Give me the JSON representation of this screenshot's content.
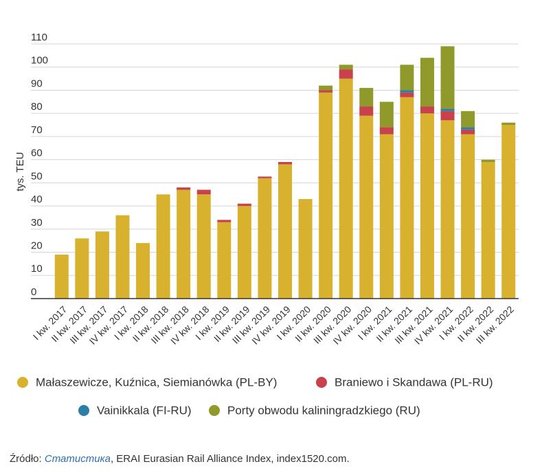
{
  "chart_data": {
    "type": "stacked_bar",
    "y_label": "tys. TEU",
    "categories": [
      "I kw. 2017",
      "II kw. 2017",
      "III kw. 2017",
      "IV kw. 2017",
      "I kw. 2018",
      "II kw. 2018",
      "III kw. 2018",
      "IV kw. 2018",
      "I kw. 2019",
      "II kw. 2019",
      "III kw. 2019",
      "IV kw. 2019",
      "I kw. 2020",
      "II kw. 2020",
      "III kw. 2020",
      "IV kw. 2020",
      "I kw. 2021",
      "II kw. 2021",
      "III kw. 2021",
      "IV kw. 2021",
      "I kw. 2022",
      "II kw. 2022",
      "III kw. 2022"
    ],
    "series": [
      {
        "name": "Małaszewicze, Kuźnica, Siemianówka (PL-BY)",
        "color": "#d8b22f",
        "values": [
          19,
          26,
          29,
          36,
          24,
          45,
          47,
          45,
          33,
          40,
          52,
          58,
          43,
          89,
          95,
          79,
          71,
          87,
          80,
          77,
          71,
          59,
          75
        ]
      },
      {
        "name": "Braniewo i Skandawa (PL-RU)",
        "color": "#c8414b",
        "values": [
          0,
          0,
          0,
          0,
          0,
          0,
          1,
          2,
          1,
          1,
          0.7,
          1,
          0,
          1,
          4,
          4,
          3,
          2,
          3,
          4,
          2,
          0,
          0
        ]
      },
      {
        "name": "Vainikkala (FI-RU)",
        "color": "#2a7fa6",
        "values": [
          0,
          0,
          0,
          0,
          0,
          0,
          0,
          0,
          0,
          0,
          0,
          0,
          0,
          0,
          0,
          0,
          0,
          1,
          0,
          1,
          1,
          0,
          0
        ]
      },
      {
        "name": "Porty obwodu kaliningradzkiego (RU)",
        "color": "#8f9a2a",
        "values": [
          0,
          0,
          0,
          0,
          0,
          0,
          0,
          0,
          0,
          0,
          0,
          0,
          0,
          2,
          2,
          8,
          11,
          11,
          21,
          27,
          7,
          1,
          1
        ]
      }
    ],
    "ylim": [
      0,
      110
    ],
    "yticks": [
      0,
      10,
      20,
      30,
      40,
      50,
      60,
      70,
      80,
      90,
      100,
      110
    ],
    "grid": true,
    "source": [
      "Źródło: ",
      "Статистика",
      ", ERAI Eurasian Rail Alliance Index, index1520.com."
    ]
  }
}
